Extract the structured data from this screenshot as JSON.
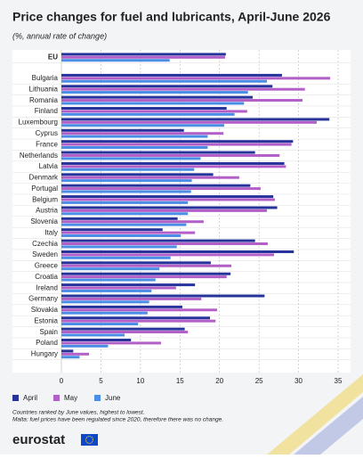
{
  "chart_data": {
    "type": "grouped-hbar",
    "title": "Price changes for fuel and lubricants, April-June 2026",
    "subtitle": "(%, annual rate of change)",
    "categories": [
      "EU",
      "Bulgaria",
      "Lithuania",
      "Romania",
      "Finland",
      "Luxembourg",
      "Cyprus",
      "France",
      "Netherlands",
      "Latvia",
      "Denmark",
      "Portugal",
      "Belgium",
      "Austria",
      "Slovenia",
      "Italy",
      "Czechia",
      "Sweden",
      "Greece",
      "Croatia",
      "Ireland",
      "Germany",
      "Slovakia",
      "Estonia",
      "Spain",
      "Poland",
      "Hungary"
    ],
    "series": [
      {
        "name": "April",
        "color": "#26339a",
        "values": [
          20.8,
          27.9,
          26.7,
          24.2,
          20.9,
          33.9,
          15.5,
          29.3,
          24.5,
          28.2,
          19.2,
          23.9,
          26.8,
          27.3,
          14.7,
          12.8,
          24.5,
          29.4,
          18.9,
          21.4,
          16.9,
          25.7,
          15.3,
          18.8,
          15.6,
          8.8,
          1.5
        ]
      },
      {
        "name": "May",
        "color": "#b35fc8",
        "values": [
          20.7,
          34.0,
          30.8,
          30.5,
          23.5,
          32.3,
          20.5,
          29.1,
          27.6,
          28.4,
          22.5,
          25.2,
          27.0,
          26.0,
          18.0,
          16.9,
          26.1,
          26.9,
          21.5,
          20.9,
          14.5,
          17.7,
          19.7,
          19.5,
          16.0,
          12.6,
          3.5
        ]
      },
      {
        "name": "June",
        "color": "#4a8ee6",
        "values": [
          13.7,
          26.0,
          23.6,
          23.1,
          21.9,
          20.6,
          18.5,
          18.5,
          17.6,
          16.8,
          16.5,
          16.4,
          16.0,
          16.0,
          15.8,
          15.1,
          14.6,
          13.8,
          12.4,
          11.9,
          11.4,
          11.1,
          10.9,
          9.7,
          8.0,
          5.9,
          2.3
        ]
      }
    ],
    "xlim": [
      0,
      35
    ],
    "xticks": [
      0,
      5,
      10,
      15,
      20,
      25,
      30,
      35
    ],
    "grid": true,
    "notes": [
      "Countries ranked by June values, highest to lowest.",
      "Malta: fuel prices have been regulated since 2020, therefore there was no change."
    ],
    "logo": "eurostat"
  }
}
